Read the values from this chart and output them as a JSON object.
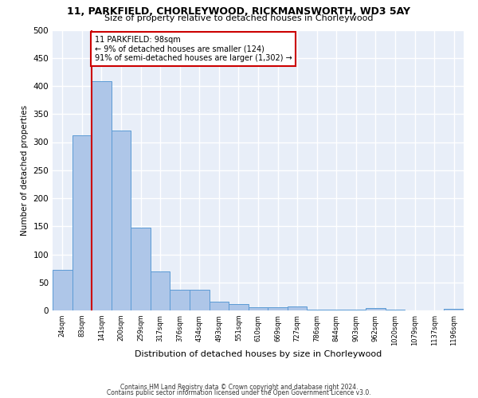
{
  "title1": "11, PARKFIELD, CHORLEYWOOD, RICKMANSWORTH, WD3 5AY",
  "title2": "Size of property relative to detached houses in Chorleywood",
  "xlabel": "Distribution of detached houses by size in Chorleywood",
  "ylabel": "Number of detached properties",
  "categories": [
    "24sqm",
    "83sqm",
    "141sqm",
    "200sqm",
    "259sqm",
    "317sqm",
    "376sqm",
    "434sqm",
    "493sqm",
    "551sqm",
    "610sqm",
    "669sqm",
    "727sqm",
    "786sqm",
    "844sqm",
    "903sqm",
    "962sqm",
    "1020sqm",
    "1079sqm",
    "1137sqm",
    "1196sqm"
  ],
  "values": [
    72,
    312,
    408,
    320,
    148,
    70,
    37,
    37,
    15,
    11,
    5,
    5,
    7,
    2,
    2,
    2,
    4,
    1,
    0,
    0,
    3
  ],
  "bar_color": "#aec6e8",
  "bar_edge_color": "#5b9bd5",
  "annotation_text": "11 PARKFIELD: 98sqm\n← 9% of detached houses are smaller (124)\n91% of semi-detached houses are larger (1,302) →",
  "annotation_box_color": "#ffffff",
  "annotation_box_edge_color": "#cc0000",
  "vline_color": "#cc0000",
  "background_color": "#e8eef8",
  "grid_color": "#ffffff",
  "footer1": "Contains HM Land Registry data © Crown copyright and database right 2024.",
  "footer2": "Contains public sector information licensed under the Open Government Licence v3.0.",
  "ylim": [
    0,
    500
  ],
  "yticks": [
    0,
    50,
    100,
    150,
    200,
    250,
    300,
    350,
    400,
    450,
    500
  ]
}
